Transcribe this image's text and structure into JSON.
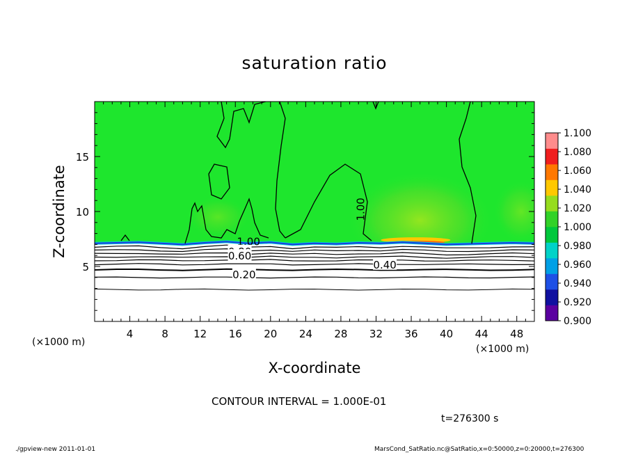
{
  "chart_data": {
    "type": "heatmap",
    "title": "saturation ratio",
    "xlabel": "X-coordinate",
    "ylabel": "Z-coordinate",
    "x_unit": "(×1000 m)",
    "y_unit": "(×1000 m)",
    "xlim": [
      0,
      50
    ],
    "ylim": [
      0,
      20
    ],
    "x_ticks": [
      4,
      8,
      12,
      16,
      20,
      24,
      28,
      32,
      36,
      40,
      44,
      48
    ],
    "y_ticks": [
      5,
      10,
      15
    ],
    "grid": false,
    "legend_placement": "right",
    "colorbar": {
      "levels": [
        0.9,
        0.92,
        0.94,
        0.96,
        0.98,
        1.0,
        1.02,
        1.04,
        1.06,
        1.08,
        1.1
      ],
      "labels": [
        "1.100",
        "1.080",
        "1.060",
        "1.040",
        "1.020",
        "1.000",
        "0.980",
        "0.960",
        "0.940",
        "0.920",
        "0.900"
      ],
      "colors": [
        "#5a00a0",
        "#1010a0",
        "#1e50e6",
        "#00a0e6",
        "#00d2c8",
        "#00c83c",
        "#32d228",
        "#96dc1e",
        "#ffc800",
        "#ff7800",
        "#f01e1e",
        "#ff8c8c"
      ]
    },
    "contour_labels": [
      {
        "text": "1.00",
        "x": 30.2,
        "z": 10.2
      },
      {
        "text": "1.00",
        "x": 17.5,
        "z": 7.3
      },
      {
        "text": "0.80",
        "x": 16.5,
        "z": 6.4
      },
      {
        "text": "0.60",
        "x": 16.5,
        "z": 6.0
      },
      {
        "text": "0.40",
        "x": 33.0,
        "z": 5.2
      },
      {
        "text": "0.20",
        "x": 17.0,
        "z": 4.3
      }
    ],
    "cloud_base_z": [
      7.1,
      7.15,
      7.2,
      7.1,
      7.0,
      7.15,
      7.25,
      7.1,
      7.2,
      7.0,
      7.1,
      7.05,
      7.15,
      7.1,
      7.2,
      7.1,
      7.0,
      7.05,
      7.1,
      7.15,
      7.1
    ]
  },
  "contour_interval_text": "CONTOUR INTERVAL = 1.000E-01",
  "time_text": "t=276300 s",
  "footer_left": "./gpview-new  2011-01-01",
  "footer_right": "MarsCond_SatRatio.nc@SatRatio,x=0:50000,z=0:20000,t=276300",
  "colors": {
    "background": "#ffffff",
    "main_green": "#1ee62d",
    "dry_region": "#ffffff",
    "contour_line": "#000000"
  }
}
